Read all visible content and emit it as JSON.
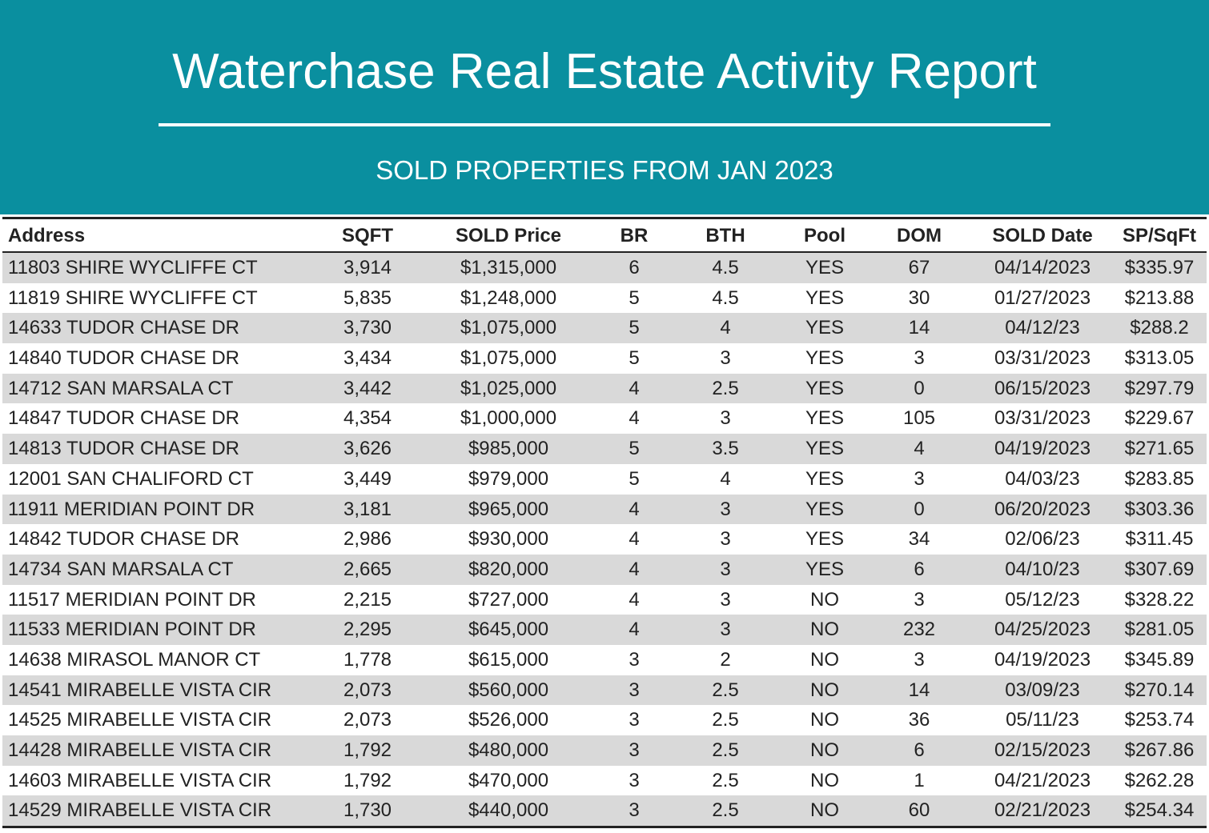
{
  "header": {
    "title": "Waterchase Real Estate Activity Report",
    "subtitle": "SOLD PROPERTIES FROM JAN 2023"
  },
  "table": {
    "columns": [
      "Address",
      "SQFT",
      "SOLD Price",
      "BR",
      "BTH",
      "Pool",
      "DOM",
      "SOLD Date",
      "SP/SqFt"
    ],
    "rows": [
      [
        "11803 SHIRE WYCLIFFE CT",
        "3,914",
        "$1,315,000",
        "6",
        "4.5",
        "YES",
        "67",
        "04/14/2023",
        "$335.97"
      ],
      [
        "11819 SHIRE WYCLIFFE CT",
        "5,835",
        "$1,248,000",
        "5",
        "4.5",
        "YES",
        "30",
        "01/27/2023",
        "$213.88"
      ],
      [
        "14633 TUDOR CHASE DR",
        "3,730",
        "$1,075,000",
        "5",
        "4",
        "YES",
        "14",
        "04/12/23",
        "$288.2"
      ],
      [
        "14840 TUDOR CHASE DR",
        "3,434",
        "$1,075,000",
        "5",
        "3",
        "YES",
        "3",
        "03/31/2023",
        "$313.05"
      ],
      [
        "14712 SAN MARSALA CT",
        "3,442",
        "$1,025,000",
        "4",
        "2.5",
        "YES",
        "0",
        "06/15/2023",
        "$297.79"
      ],
      [
        "14847 TUDOR CHASE DR",
        "4,354",
        "$1,000,000",
        "4",
        "3",
        "YES",
        "105",
        "03/31/2023",
        "$229.67"
      ],
      [
        "14813 TUDOR CHASE DR",
        "3,626",
        "$985,000",
        "5",
        "3.5",
        "YES",
        "4",
        "04/19/2023",
        "$271.65"
      ],
      [
        "12001 SAN CHALIFORD CT",
        "3,449",
        "$979,000",
        "5",
        "4",
        "YES",
        "3",
        "04/03/23",
        "$283.85"
      ],
      [
        "11911 MERIDIAN POINT DR",
        "3,181",
        "$965,000",
        "4",
        "3",
        "YES",
        "0",
        "06/20/2023",
        "$303.36"
      ],
      [
        "14842 TUDOR CHASE DR",
        "2,986",
        "$930,000",
        "4",
        "3",
        "YES",
        "34",
        "02/06/23",
        "$311.45"
      ],
      [
        "14734 SAN MARSALA CT",
        "2,665",
        "$820,000",
        "4",
        "3",
        "YES",
        "6",
        "04/10/23",
        "$307.69"
      ],
      [
        "11517 MERIDIAN POINT DR",
        "2,215",
        "$727,000",
        "4",
        "3",
        "NO",
        "3",
        "05/12/23",
        "$328.22"
      ],
      [
        "11533 MERIDIAN POINT DR",
        "2,295",
        "$645,000",
        "4",
        "3",
        "NO",
        "232",
        "04/25/2023",
        "$281.05"
      ],
      [
        "14638 MIRASOL MANOR CT",
        "1,778",
        "$615,000",
        "3",
        "2",
        "NO",
        "3",
        "04/19/2023",
        "$345.89"
      ],
      [
        "14541 MIRABELLE VISTA CIR",
        "2,073",
        "$560,000",
        "3",
        "2.5",
        "NO",
        "14",
        "03/09/23",
        "$270.14"
      ],
      [
        "14525 MIRABELLE VISTA CIR",
        "2,073",
        "$526,000",
        "3",
        "2.5",
        "NO",
        "36",
        "05/11/23",
        "$253.74"
      ],
      [
        "14428 MIRABELLE VISTA CIR",
        "1,792",
        "$480,000",
        "3",
        "2.5",
        "NO",
        "6",
        "02/15/2023",
        "$267.86"
      ],
      [
        "14603 MIRABELLE VISTA CIR",
        "1,792",
        "$470,000",
        "3",
        "2.5",
        "NO",
        "1",
        "04/21/2023",
        "$262.28"
      ],
      [
        "14529 MIRABELLE VISTA CIR",
        "1,730",
        "$440,000",
        "3",
        "2.5",
        "NO",
        "60",
        "02/21/2023",
        "$254.34"
      ]
    ]
  }
}
